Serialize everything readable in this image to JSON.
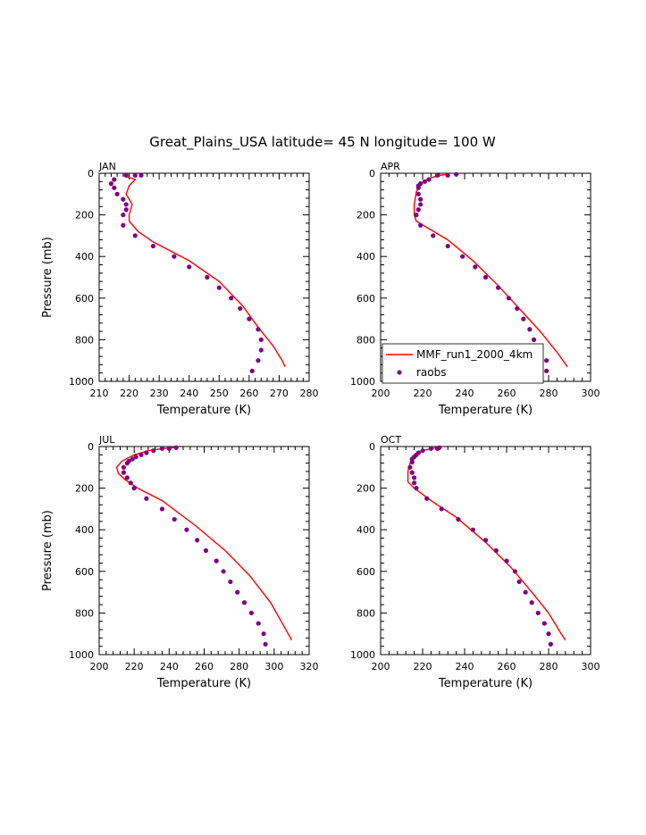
{
  "figure_title": "Great_Plains_USA  latitude= 45 N longitude= 100 W",
  "colors": {
    "model": "#ff0000",
    "obs": "#800080",
    "axis": "#000000"
  },
  "chart_data": [
    {
      "type": "line+scatter",
      "panel_label": "JAN",
      "xlabel": "Temperature (K)",
      "ylabel": "Pressure (mb)",
      "xlim": [
        210,
        280
      ],
      "ylim": [
        0,
        1000
      ],
      "y_inverted": true,
      "xticks": [
        210,
        220,
        230,
        240,
        250,
        260,
        270,
        280
      ],
      "yticks": [
        0,
        200,
        400,
        600,
        800,
        1000
      ],
      "series": [
        {
          "name": "MMF_run1_2000_4km",
          "kind": "line",
          "points": [
            [
              218,
              10
            ],
            [
              220,
              20
            ],
            [
              222,
              30
            ],
            [
              220,
              60
            ],
            [
              219,
              100
            ],
            [
              221,
              150
            ],
            [
              220,
              200
            ],
            [
              220,
              230
            ],
            [
              223,
              280
            ],
            [
              228,
              330
            ],
            [
              240,
              420
            ],
            [
              250,
              520
            ],
            [
              258,
              640
            ],
            [
              263,
              740
            ],
            [
              268,
              830
            ],
            [
              271,
              900
            ],
            [
              272,
              930
            ]
          ]
        },
        {
          "name": "raobs",
          "kind": "scatter",
          "points": [
            [
              224,
              10
            ],
            [
              222,
              10
            ],
            [
              219,
              10
            ],
            [
              215,
              30
            ],
            [
              214,
              50
            ],
            [
              215,
              70
            ],
            [
              216,
              100
            ],
            [
              218,
              125
            ],
            [
              219,
              150
            ],
            [
              219,
              175
            ],
            [
              218,
              200
            ],
            [
              218,
              250
            ],
            [
              222,
              300
            ],
            [
              228,
              350
            ],
            [
              235,
              400
            ],
            [
              240,
              450
            ],
            [
              246,
              500
            ],
            [
              250,
              550
            ],
            [
              254,
              600
            ],
            [
              257,
              650
            ],
            [
              260,
              700
            ],
            [
              263,
              750
            ],
            [
              264,
              800
            ],
            [
              264,
              850
            ],
            [
              263,
              900
            ],
            [
              261,
              950
            ]
          ]
        }
      ]
    },
    {
      "type": "line+scatter",
      "panel_label": "APR",
      "xlabel": "Temperature (K)",
      "ylabel": "",
      "xlim": [
        200,
        300
      ],
      "ylim": [
        0,
        1000
      ],
      "y_inverted": true,
      "xticks": [
        200,
        220,
        240,
        260,
        280,
        300
      ],
      "yticks": [
        0,
        200,
        400,
        600,
        800,
        1000
      ],
      "legend": {
        "position": "bottom-left",
        "entries": [
          "MMF_run1_2000_4km",
          "raobs"
        ]
      },
      "series": [
        {
          "name": "MMF_run1_2000_4km",
          "kind": "line",
          "points": [
            [
              232,
              5
            ],
            [
              228,
              10
            ],
            [
              223,
              25
            ],
            [
              219,
              50
            ],
            [
              217,
              90
            ],
            [
              216,
              150
            ],
            [
              216,
              200
            ],
            [
              217,
              230
            ],
            [
              222,
              260
            ],
            [
              232,
              320
            ],
            [
              244,
              420
            ],
            [
              256,
              540
            ],
            [
              266,
              650
            ],
            [
              276,
              760
            ],
            [
              284,
              860
            ],
            [
              289,
              930
            ]
          ]
        },
        {
          "name": "raobs",
          "kind": "scatter",
          "points": [
            [
              236,
              5
            ],
            [
              232,
              10
            ],
            [
              227,
              10
            ],
            [
              223,
              30
            ],
            [
              221,
              40
            ],
            [
              219,
              50
            ],
            [
              218,
              60
            ],
            [
              218,
              70
            ],
            [
              218,
              100
            ],
            [
              219,
              125
            ],
            [
              219,
              150
            ],
            [
              218,
              175
            ],
            [
              217,
              200
            ],
            [
              219,
              250
            ],
            [
              225,
              300
            ],
            [
              232,
              350
            ],
            [
              239,
              400
            ],
            [
              245,
              450
            ],
            [
              250,
              500
            ],
            [
              256,
              550
            ],
            [
              261,
              600
            ],
            [
              265,
              650
            ],
            [
              268,
              700
            ],
            [
              271,
              750
            ],
            [
              273,
              800
            ],
            [
              276,
              850
            ],
            [
              279,
              900
            ],
            [
              279,
              950
            ]
          ]
        }
      ]
    },
    {
      "type": "line+scatter",
      "panel_label": "JUL",
      "xlabel": "Temperature (K)",
      "ylabel": "Pressure (mb)",
      "xlim": [
        200,
        320
      ],
      "ylim": [
        0,
        1000
      ],
      "y_inverted": true,
      "xticks": [
        200,
        220,
        240,
        260,
        280,
        300,
        320
      ],
      "yticks": [
        0,
        200,
        400,
        600,
        800,
        1000
      ],
      "series": [
        {
          "name": "MMF_run1_2000_4km",
          "kind": "line",
          "points": [
            [
              243,
              5
            ],
            [
              236,
              10
            ],
            [
              228,
              20
            ],
            [
              220,
              40
            ],
            [
              213,
              70
            ],
            [
              210,
              100
            ],
            [
              211,
              130
            ],
            [
              215,
              160
            ],
            [
              222,
              200
            ],
            [
              236,
              260
            ],
            [
              255,
              380
            ],
            [
              272,
              500
            ],
            [
              286,
              620
            ],
            [
              298,
              750
            ],
            [
              306,
              870
            ],
            [
              310,
              930
            ]
          ]
        },
        {
          "name": "raobs",
          "kind": "scatter",
          "points": [
            [
              244,
              5
            ],
            [
              240,
              10
            ],
            [
              236,
              10
            ],
            [
              231,
              20
            ],
            [
              227,
              30
            ],
            [
              224,
              40
            ],
            [
              221,
              50
            ],
            [
              219,
              60
            ],
            [
              217,
              70
            ],
            [
              216,
              80
            ],
            [
              214,
              100
            ],
            [
              214,
              125
            ],
            [
              216,
              150
            ],
            [
              218,
              175
            ],
            [
              220,
              200
            ],
            [
              227,
              250
            ],
            [
              236,
              300
            ],
            [
              243,
              350
            ],
            [
              250,
              400
            ],
            [
              256,
              450
            ],
            [
              261,
              500
            ],
            [
              267,
              550
            ],
            [
              271,
              600
            ],
            [
              275,
              650
            ],
            [
              279,
              700
            ],
            [
              283,
              750
            ],
            [
              287,
              800
            ],
            [
              291,
              850
            ],
            [
              294,
              900
            ],
            [
              295,
              950
            ]
          ]
        }
      ]
    },
    {
      "type": "line+scatter",
      "panel_label": "OCT",
      "xlabel": "Temperature (K)",
      "ylabel": "",
      "xlim": [
        200,
        300
      ],
      "ylim": [
        0,
        1000
      ],
      "y_inverted": true,
      "xticks": [
        200,
        220,
        240,
        260,
        280,
        300
      ],
      "yticks": [
        0,
        200,
        400,
        600,
        800,
        1000
      ],
      "series": [
        {
          "name": "MMF_run1_2000_4km",
          "kind": "line",
          "points": [
            [
              227,
              5
            ],
            [
              224,
              10
            ],
            [
              220,
              20
            ],
            [
              216,
              50
            ],
            [
              214,
              80
            ],
            [
              213,
              120
            ],
            [
              213,
              170
            ],
            [
              216,
              200
            ],
            [
              224,
              260
            ],
            [
              236,
              340
            ],
            [
              250,
              460
            ],
            [
              262,
              580
            ],
            [
              272,
              700
            ],
            [
              280,
              800
            ],
            [
              286,
              900
            ],
            [
              288,
              930
            ]
          ]
        },
        {
          "name": "raobs",
          "kind": "scatter",
          "points": [
            [
              228,
              5
            ],
            [
              227,
              10
            ],
            [
              224,
              10
            ],
            [
              220,
              20
            ],
            [
              218,
              30
            ],
            [
              217,
              40
            ],
            [
              216,
              50
            ],
            [
              215,
              60
            ],
            [
              215,
              75
            ],
            [
              214,
              100
            ],
            [
              215,
              125
            ],
            [
              216,
              150
            ],
            [
              216,
              175
            ],
            [
              217,
              200
            ],
            [
              222,
              250
            ],
            [
              229,
              300
            ],
            [
              237,
              350
            ],
            [
              244,
              400
            ],
            [
              250,
              450
            ],
            [
              255,
              500
            ],
            [
              260,
              550
            ],
            [
              264,
              600
            ],
            [
              266,
              650
            ],
            [
              269,
              700
            ],
            [
              272,
              750
            ],
            [
              275,
              800
            ],
            [
              278,
              850
            ],
            [
              280,
              900
            ],
            [
              281,
              950
            ]
          ]
        }
      ]
    }
  ]
}
